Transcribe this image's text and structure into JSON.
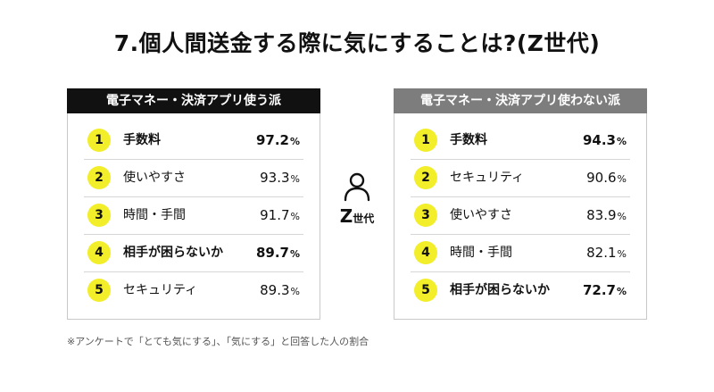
{
  "title": "7.個人間送金する際に気にすることは?(Z世代)",
  "colors": {
    "rank_badge": "#f2ee2a",
    "left_header_bg": "#111111",
    "right_header_bg": "#7d7d7d",
    "footnote_text": "#555555"
  },
  "left_panel": {
    "header": "電子マネー・決済アプリ使う派",
    "rows": [
      {
        "rank": "1",
        "label": "手数料",
        "value": "97.2",
        "unit": "%",
        "emphasis": true
      },
      {
        "rank": "2",
        "label": "使いやすさ",
        "value": "93.3",
        "unit": "%",
        "emphasis": false
      },
      {
        "rank": "3",
        "label": "時間・手間",
        "value": "91.7",
        "unit": "%",
        "emphasis": false
      },
      {
        "rank": "4",
        "label": "相手が困らないか",
        "value": "89.7",
        "unit": "%",
        "emphasis": true
      },
      {
        "rank": "5",
        "label": "セキュリティ",
        "value": "89.3",
        "unit": "%",
        "emphasis": false
      }
    ]
  },
  "right_panel": {
    "header": "電子マネー・決済アプリ使わない派",
    "rows": [
      {
        "rank": "1",
        "label": "手数料",
        "value": "94.3",
        "unit": "%",
        "emphasis": true
      },
      {
        "rank": "2",
        "label": "セキュリティ",
        "value": "90.6",
        "unit": "%",
        "emphasis": false
      },
      {
        "rank": "3",
        "label": "使いやすさ",
        "value": "83.9",
        "unit": "%",
        "emphasis": false
      },
      {
        "rank": "4",
        "label": "時間・手間",
        "value": "82.1",
        "unit": "%",
        "emphasis": false
      },
      {
        "rank": "5",
        "label": "相手が困らないか",
        "value": "72.7",
        "unit": "%",
        "emphasis": true
      }
    ]
  },
  "center": {
    "icon": "person-icon",
    "label_main": "Z",
    "label_small": "世代"
  },
  "footnote": "※アンケートで「とても気にする」、「気にする」と回答した人の割合"
}
